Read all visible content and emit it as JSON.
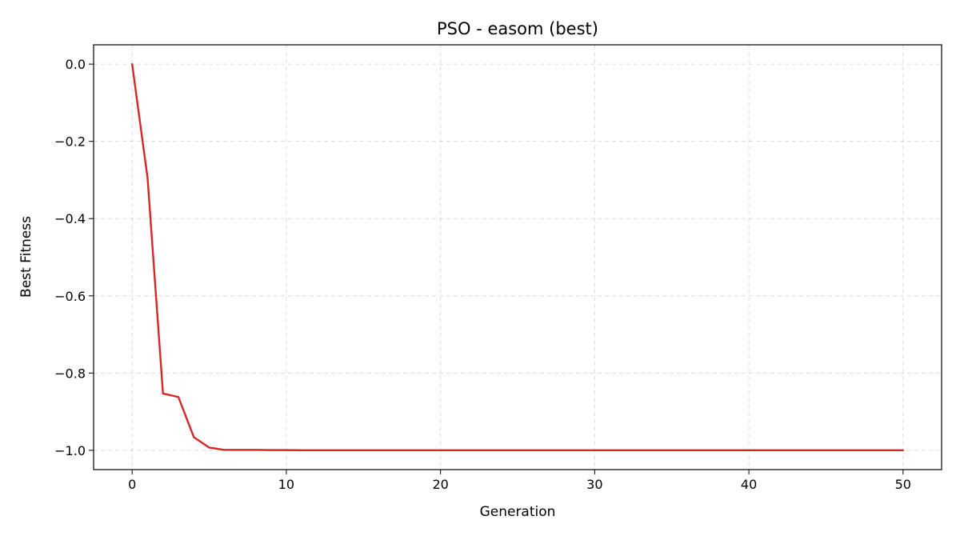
{
  "chart_data": {
    "type": "line",
    "title": "PSO - easom (best)",
    "xlabel": "Generation",
    "ylabel": "Best Fitness",
    "xlim": [
      -2.5,
      52.5
    ],
    "ylim": [
      -1.05,
      0.05
    ],
    "xticks": [
      0,
      10,
      20,
      30,
      40,
      50
    ],
    "xtick_labels": [
      "0",
      "10",
      "20",
      "30",
      "40",
      "50"
    ],
    "yticks": [
      0.0,
      -0.2,
      -0.4,
      -0.6,
      -0.8,
      -1.0
    ],
    "ytick_labels": [
      "0.0",
      "−0.2",
      "−0.4",
      "−0.6",
      "−0.8",
      "−1.0"
    ],
    "grid": true,
    "series": [
      {
        "color": "#d62728",
        "x": [
          0,
          1,
          2,
          3,
          4,
          5,
          6,
          7,
          8,
          9,
          10,
          11,
          12,
          13,
          14,
          15,
          16,
          17,
          18,
          19,
          20,
          21,
          22,
          23,
          24,
          25,
          26,
          27,
          28,
          29,
          30,
          31,
          32,
          33,
          34,
          35,
          36,
          37,
          38,
          39,
          40,
          41,
          42,
          43,
          44,
          45,
          46,
          47,
          48,
          49,
          50
        ],
        "y": [
          -0.0,
          -0.295,
          -0.853,
          -0.862,
          -0.966,
          -0.993,
          -0.999,
          -0.999,
          -0.999,
          -0.9995,
          -0.9995,
          -1.0,
          -1.0,
          -1.0,
          -1.0,
          -1.0,
          -1.0,
          -1.0,
          -1.0,
          -1.0,
          -1.0,
          -1.0,
          -1.0,
          -1.0,
          -1.0,
          -1.0,
          -1.0,
          -1.0,
          -1.0,
          -1.0,
          -1.0,
          -1.0,
          -1.0,
          -1.0,
          -1.0,
          -1.0,
          -1.0,
          -1.0,
          -1.0,
          -1.0,
          -1.0,
          -1.0,
          -1.0,
          -1.0,
          -1.0,
          -1.0,
          -1.0,
          -1.0,
          -1.0,
          -1.0,
          -1.0
        ]
      }
    ]
  }
}
